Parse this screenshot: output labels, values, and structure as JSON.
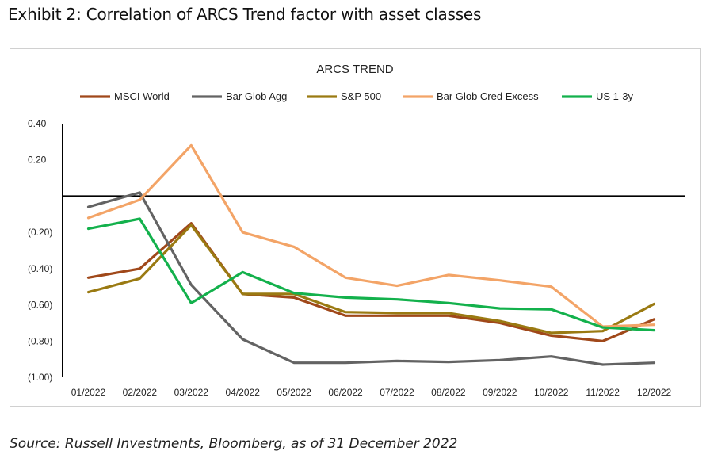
{
  "exhibit": {
    "title": "Exhibit 2: Correlation of ARCS Trend factor with asset classes",
    "source": "Source: Russell Investments, Bloomberg, as of 31 December 2022"
  },
  "chart_data": {
    "type": "line",
    "title": "ARCS TREND",
    "xlabel": "",
    "ylabel": "",
    "ylim": [
      -1.0,
      0.4
    ],
    "y_ticks": [
      0.4,
      0.2,
      0.0,
      -0.2,
      -0.4,
      -0.6,
      -0.8,
      -1.0
    ],
    "y_tick_labels": [
      "0.40",
      "0.20",
      "-",
      "(0.20)",
      "(0.40)",
      "(0.60)",
      "(0.80)",
      "(1.00)"
    ],
    "grid": false,
    "legend_position": "top",
    "categories": [
      "01/2022",
      "02/2022",
      "03/2022",
      "04/2022",
      "05/2022",
      "06/2022",
      "07/2022",
      "08/2022",
      "09/2022",
      "10/2022",
      "11/2022",
      "12/2022"
    ],
    "series": [
      {
        "name": "MSCI World",
        "color": "#a0481a",
        "values": [
          -0.45,
          -0.4,
          -0.15,
          -0.54,
          -0.56,
          -0.66,
          -0.66,
          -0.66,
          -0.7,
          -0.77,
          -0.8,
          -0.68
        ]
      },
      {
        "name": "Bar Glob Agg",
        "color": "#636363",
        "values": [
          -0.06,
          0.02,
          -0.49,
          -0.79,
          -0.92,
          -0.92,
          -0.91,
          -0.915,
          -0.905,
          -0.885,
          -0.93,
          -0.92
        ]
      },
      {
        "name": "S&P 500",
        "color": "#9a7a12",
        "values": [
          -0.53,
          -0.455,
          -0.16,
          -0.54,
          -0.54,
          -0.64,
          -0.645,
          -0.645,
          -0.69,
          -0.755,
          -0.745,
          -0.595
        ]
      },
      {
        "name": "Bar Glob Cred Excess",
        "color": "#f3a467",
        "values": [
          -0.12,
          -0.02,
          0.28,
          -0.2,
          -0.28,
          -0.45,
          -0.495,
          -0.435,
          -0.465,
          -0.5,
          -0.72,
          -0.71
        ]
      },
      {
        "name": "US 1-3y",
        "color": "#13b14c",
        "values": [
          -0.18,
          -0.125,
          -0.59,
          -0.42,
          -0.535,
          -0.56,
          -0.57,
          -0.59,
          -0.62,
          -0.625,
          -0.725,
          -0.74
        ]
      }
    ]
  }
}
